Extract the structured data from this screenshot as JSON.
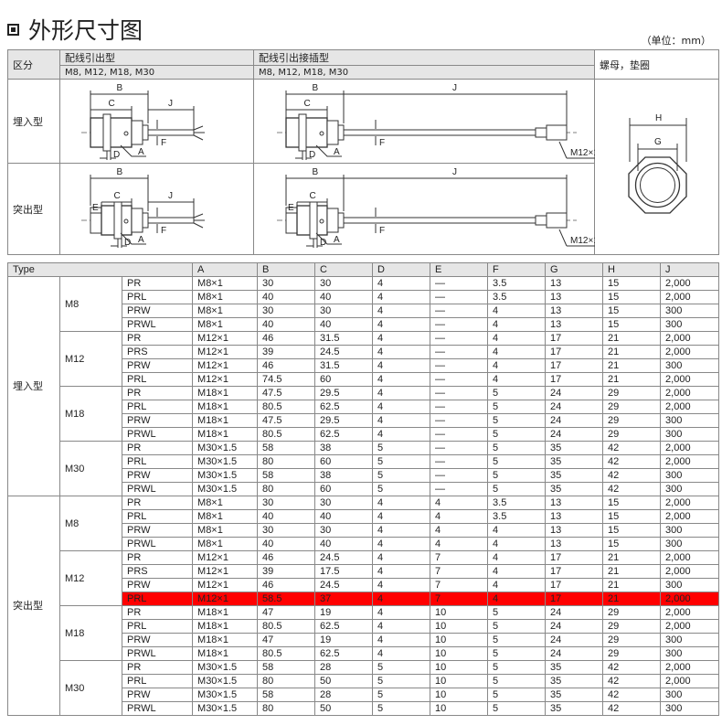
{
  "page": {
    "title": "外形尺寸图",
    "unit": "（单位：mm）"
  },
  "outline_table": {
    "col_category": "区分",
    "col_wired": "配线引出型",
    "col_wired_sizes": "M8, M12, M18, M30",
    "col_connector": "配线引出接插型",
    "col_connector_sizes": "M8, M12, M18, M30",
    "col_nut": "螺母，垫圈",
    "row_flush": "埋入型",
    "row_protruding": "突出型"
  },
  "drawing_labels": {
    "A": "A",
    "B": "B",
    "C": "C",
    "D": "D",
    "E": "E",
    "F": "F",
    "J": "J",
    "G": "G",
    "H": "H",
    "connector_thread": "M12×1"
  },
  "highlight_color": "#ff0000",
  "spec_table": {
    "columns": [
      "Type",
      "A",
      "B",
      "C",
      "D",
      "E",
      "F",
      "G",
      "H",
      "J"
    ],
    "groups": [
      {
        "mount": "埋入型",
        "sizes": [
          {
            "size": "M8",
            "rows": [
              {
                "cells": [
                  "PR",
                  "M8×1",
                  "30",
                  "30",
                  "4",
                  "—",
                  "3.5",
                  "13",
                  "15",
                  "2,000"
                ]
              },
              {
                "cells": [
                  "PRL",
                  "M8×1",
                  "40",
                  "40",
                  "4",
                  "—",
                  "3.5",
                  "13",
                  "15",
                  "2,000"
                ]
              },
              {
                "cells": [
                  "PRW",
                  "M8×1",
                  "30",
                  "30",
                  "4",
                  "—",
                  "4",
                  "13",
                  "15",
                  "300"
                ]
              },
              {
                "cells": [
                  "PRWL",
                  "M8×1",
                  "40",
                  "40",
                  "4",
                  "—",
                  "4",
                  "13",
                  "15",
                  "300"
                ]
              }
            ]
          },
          {
            "size": "M12",
            "rows": [
              {
                "cells": [
                  "PR",
                  "M12×1",
                  "46",
                  "31.5",
                  "4",
                  "—",
                  "4",
                  "17",
                  "21",
                  "2,000"
                ]
              },
              {
                "cells": [
                  "PRS",
                  "M12×1",
                  "39",
                  "24.5",
                  "4",
                  "—",
                  "4",
                  "17",
                  "21",
                  "2,000"
                ]
              },
              {
                "cells": [
                  "PRW",
                  "M12×1",
                  "46",
                  "31.5",
                  "4",
                  "—",
                  "4",
                  "17",
                  "21",
                  "300"
                ]
              },
              {
                "cells": [
                  "PRL",
                  "M12×1",
                  "74.5",
                  "60",
                  "4",
                  "—",
                  "4",
                  "17",
                  "21",
                  "2,000"
                ]
              }
            ]
          },
          {
            "size": "M18",
            "rows": [
              {
                "cells": [
                  "PR",
                  "M18×1",
                  "47.5",
                  "29.5",
                  "4",
                  "—",
                  "5",
                  "24",
                  "29",
                  "2,000"
                ]
              },
              {
                "cells": [
                  "PRL",
                  "M18×1",
                  "80.5",
                  "62.5",
                  "4",
                  "—",
                  "5",
                  "24",
                  "29",
                  "2,000"
                ]
              },
              {
                "cells": [
                  "PRW",
                  "M18×1",
                  "47.5",
                  "29.5",
                  "4",
                  "—",
                  "5",
                  "24",
                  "29",
                  "300"
                ]
              },
              {
                "cells": [
                  "PRWL",
                  "M18×1",
                  "80.5",
                  "62.5",
                  "4",
                  "—",
                  "5",
                  "24",
                  "29",
                  "300"
                ]
              }
            ]
          },
          {
            "size": "M30",
            "rows": [
              {
                "cells": [
                  "PR",
                  "M30×1.5",
                  "58",
                  "38",
                  "5",
                  "—",
                  "5",
                  "35",
                  "42",
                  "2,000"
                ]
              },
              {
                "cells": [
                  "PRL",
                  "M30×1.5",
                  "80",
                  "60",
                  "5",
                  "—",
                  "5",
                  "35",
                  "42",
                  "2,000"
                ]
              },
              {
                "cells": [
                  "PRW",
                  "M30×1.5",
                  "58",
                  "38",
                  "5",
                  "—",
                  "5",
                  "35",
                  "42",
                  "300"
                ]
              },
              {
                "cells": [
                  "PRWL",
                  "M30×1.5",
                  "80",
                  "60",
                  "5",
                  "—",
                  "5",
                  "35",
                  "42",
                  "300"
                ]
              }
            ]
          }
        ]
      },
      {
        "mount": "突出型",
        "sizes": [
          {
            "size": "M8",
            "rows": [
              {
                "cells": [
                  "PR",
                  "M8×1",
                  "30",
                  "30",
                  "4",
                  "4",
                  "3.5",
                  "13",
                  "15",
                  "2,000"
                ]
              },
              {
                "cells": [
                  "PRL",
                  "M8×1",
                  "40",
                  "40",
                  "4",
                  "4",
                  "3.5",
                  "13",
                  "15",
                  "2,000"
                ]
              },
              {
                "cells": [
                  "PRW",
                  "M8×1",
                  "30",
                  "30",
                  "4",
                  "4",
                  "4",
                  "13",
                  "15",
                  "300"
                ]
              },
              {
                "cells": [
                  "PRWL",
                  "M8×1",
                  "40",
                  "40",
                  "4",
                  "4",
                  "4",
                  "13",
                  "15",
                  "300"
                ]
              }
            ]
          },
          {
            "size": "M12",
            "rows": [
              {
                "cells": [
                  "PR",
                  "M12×1",
                  "46",
                  "24.5",
                  "4",
                  "7",
                  "4",
                  "17",
                  "21",
                  "2,000"
                ]
              },
              {
                "cells": [
                  "PRS",
                  "M12×1",
                  "39",
                  "17.5",
                  "4",
                  "7",
                  "4",
                  "17",
                  "21",
                  "2,000"
                ]
              },
              {
                "cells": [
                  "PRW",
                  "M12×1",
                  "46",
                  "24.5",
                  "4",
                  "7",
                  "4",
                  "17",
                  "21",
                  "300"
                ]
              },
              {
                "cells": [
                  "PRL",
                  "M12×1",
                  "58.5",
                  "37",
                  "4",
                  "7",
                  "4",
                  "17",
                  "21",
                  "2,000"
                ],
                "highlighted": true
              }
            ]
          },
          {
            "size": "M18",
            "rows": [
              {
                "cells": [
                  "PR",
                  "M18×1",
                  "47",
                  "19",
                  "4",
                  "10",
                  "5",
                  "24",
                  "29",
                  "2,000"
                ]
              },
              {
                "cells": [
                  "PRL",
                  "M18×1",
                  "80.5",
                  "62.5",
                  "4",
                  "10",
                  "5",
                  "24",
                  "29",
                  "2,000"
                ]
              },
              {
                "cells": [
                  "PRW",
                  "M18×1",
                  "47",
                  "19",
                  "4",
                  "10",
                  "5",
                  "24",
                  "29",
                  "300"
                ]
              },
              {
                "cells": [
                  "PRWL",
                  "M18×1",
                  "80.5",
                  "62.5",
                  "4",
                  "10",
                  "5",
                  "24",
                  "29",
                  "300"
                ]
              }
            ]
          },
          {
            "size": "M30",
            "rows": [
              {
                "cells": [
                  "PR",
                  "M30×1.5",
                  "58",
                  "28",
                  "5",
                  "10",
                  "5",
                  "35",
                  "42",
                  "2,000"
                ]
              },
              {
                "cells": [
                  "PRL",
                  "M30×1.5",
                  "80",
                  "50",
                  "5",
                  "10",
                  "5",
                  "35",
                  "42",
                  "2,000"
                ]
              },
              {
                "cells": [
                  "PRW",
                  "M30×1.5",
                  "58",
                  "28",
                  "5",
                  "10",
                  "5",
                  "35",
                  "42",
                  "300"
                ]
              },
              {
                "cells": [
                  "PRWL",
                  "M30×1.5",
                  "80",
                  "50",
                  "5",
                  "10",
                  "5",
                  "35",
                  "42",
                  "300"
                ]
              }
            ]
          }
        ]
      }
    ]
  }
}
